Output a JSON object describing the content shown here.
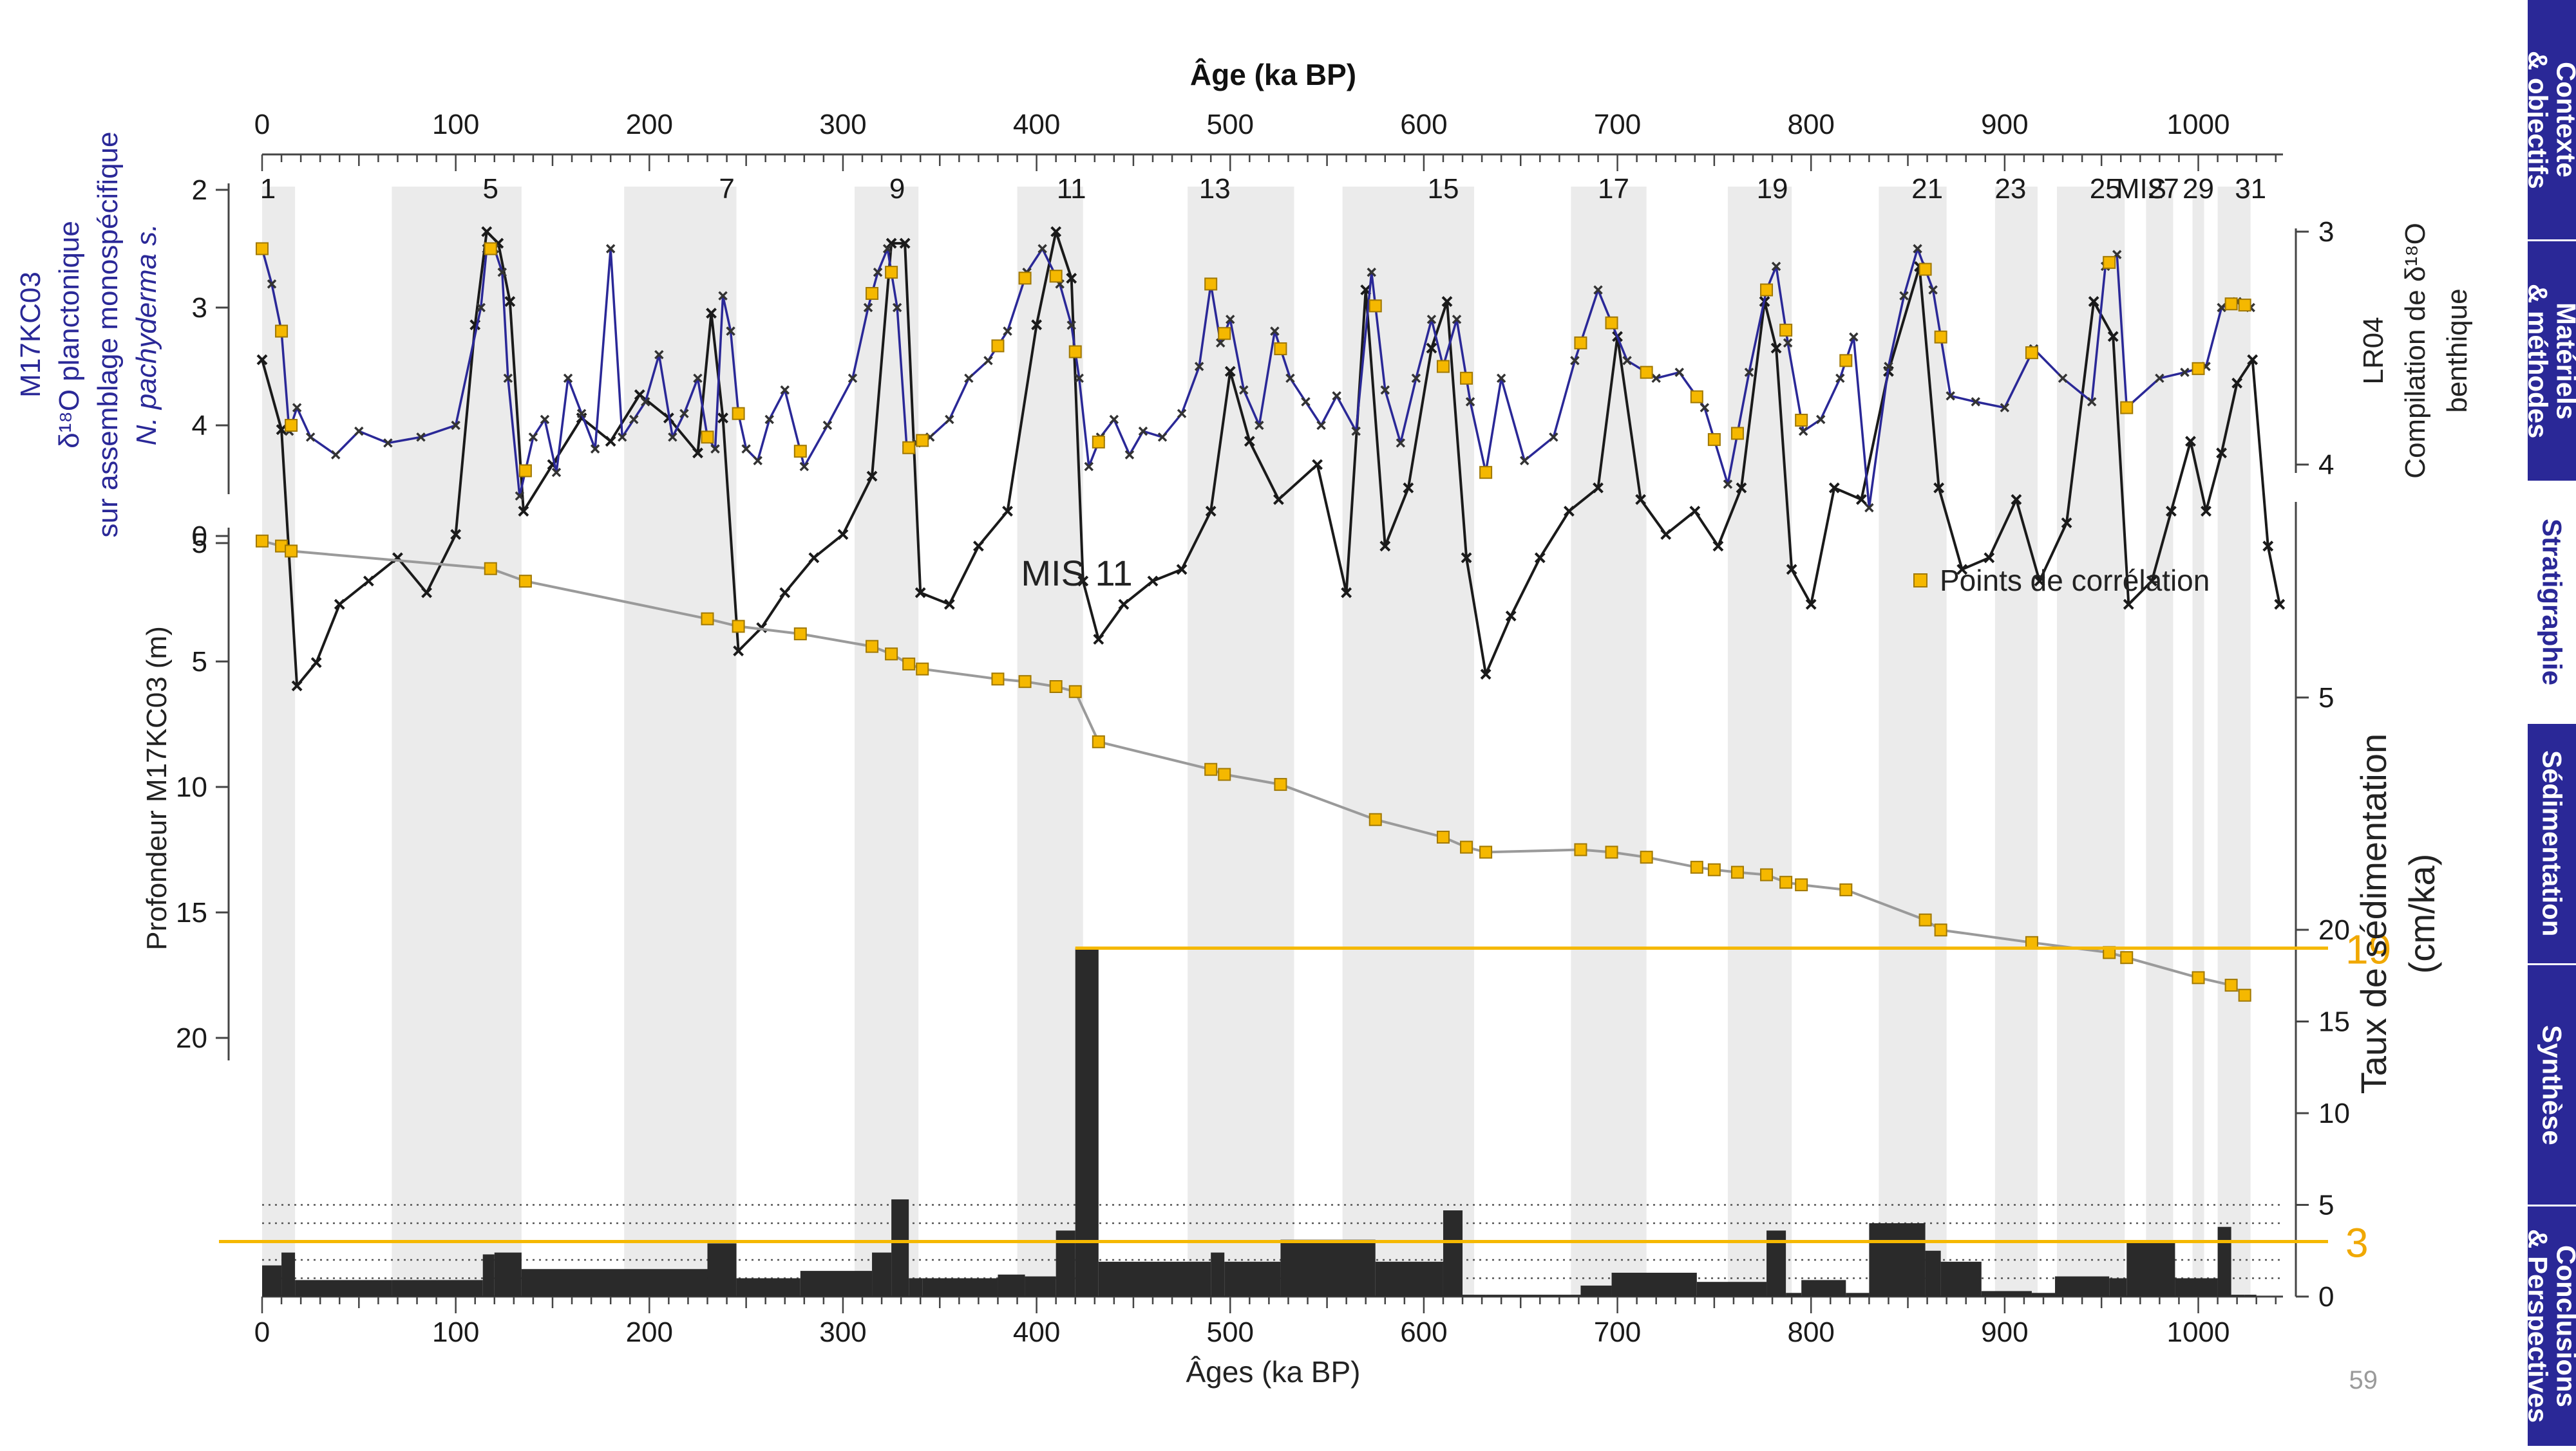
{
  "nav": {
    "tabs": [
      {
        "label": "Contexte\n& objectifs",
        "active": false
      },
      {
        "label": "Matériels\n& méthodes",
        "active": false
      },
      {
        "label": "Stratigraphie",
        "active": true
      },
      {
        "label": "Sédimentation",
        "active": false
      },
      {
        "label": "Synthèse",
        "active": false
      },
      {
        "label": "Conclusions\n& Perspectives",
        "active": false
      }
    ]
  },
  "page_number": "59",
  "colors": {
    "accent": "#f5b800",
    "nav": "#2a2897",
    "planktonic": "#2a2897",
    "benthic": "#1a1a1a",
    "band": "#ebebeb",
    "bars": "#2a2a2a"
  },
  "chart_data": {
    "type": "line",
    "top_axis_label": "Âge (ka BP)",
    "bottom_axis_label": "Âges (ka BP)",
    "x_ticks": [
      0,
      100,
      200,
      300,
      400,
      500,
      600,
      700,
      800,
      900,
      1000
    ],
    "xlim": [
      0,
      1050
    ],
    "mis_label": "MIS",
    "mis": [
      {
        "label": "1",
        "age": 3
      },
      {
        "label": "5",
        "age": 118
      },
      {
        "label": "7",
        "age": 240
      },
      {
        "label": "9",
        "age": 328
      },
      {
        "label": "11",
        "age": 418
      },
      {
        "label": "13",
        "age": 492
      },
      {
        "label": "15",
        "age": 610
      },
      {
        "label": "17",
        "age": 698
      },
      {
        "label": "19",
        "age": 780
      },
      {
        "label": "21",
        "age": 860
      },
      {
        "label": "23",
        "age": 903
      },
      {
        "label": "25",
        "age": 952
      },
      {
        "label": "27",
        "age": 982
      },
      {
        "label": "29",
        "age": 1000
      },
      {
        "label": "31",
        "age": 1027
      }
    ],
    "interglacial_bands": [
      [
        0,
        17
      ],
      [
        67,
        134
      ],
      [
        187,
        245
      ],
      [
        306,
        339
      ],
      [
        390,
        424
      ],
      [
        478,
        533
      ],
      [
        558,
        626
      ],
      [
        676,
        715
      ],
      [
        757,
        790
      ],
      [
        835,
        870
      ],
      [
        895,
        917
      ],
      [
        927,
        962
      ],
      [
        973,
        987
      ],
      [
        997,
        1003
      ],
      [
        1010,
        1027
      ]
    ],
    "panel_top": {
      "left_label": [
        "M17KC03",
        "δ¹⁸O planctonique",
        "sur assemblage monospécifique",
        "N. pachyderma s."
      ],
      "right_label": [
        "LR04",
        "Compilation de δ¹⁸O",
        "benthique"
      ],
      "left_ticks": [
        2,
        3,
        4,
        5
      ],
      "left_ylim": [
        2,
        5
      ],
      "right_ticks": [
        3,
        4,
        5
      ],
      "right_ylim": [
        3,
        5
      ],
      "series": [
        {
          "role": "planktonic",
          "x": [
            0,
            5,
            10,
            14,
            18,
            25,
            38,
            50,
            65,
            82,
            100,
            113,
            116,
            120,
            124,
            127,
            133,
            140,
            146,
            152,
            158,
            165,
            172,
            180,
            186,
            192,
            198,
            205,
            212,
            218,
            225,
            230,
            234,
            238,
            242,
            246,
            250,
            256,
            262,
            270,
            280,
            292,
            305,
            313,
            318,
            323,
            328,
            333,
            338,
            345,
            355,
            365,
            375,
            385,
            395,
            403,
            412,
            418,
            422,
            427,
            433,
            440,
            448,
            455,
            465,
            475,
            484,
            490,
            495,
            500,
            507,
            515,
            523,
            531,
            539,
            547,
            555,
            565,
            573,
            580,
            588,
            596,
            604,
            610,
            617,
            624,
            632,
            640,
            652,
            667,
            678,
            690,
            705,
            720,
            732,
            745,
            757,
            768,
            777,
            782,
            788,
            796,
            805,
            815,
            822,
            830,
            840,
            848,
            855,
            863,
            872,
            885,
            900,
            915,
            930,
            945,
            952,
            958,
            963,
            980,
            993,
            1004,
            1012,
            1020,
            1027
          ],
          "y": [
            2.5,
            2.8,
            3.2,
            4.05,
            3.85,
            4.1,
            4.25,
            4.05,
            4.15,
            4.1,
            4.0,
            3.0,
            2.5,
            2.5,
            2.7,
            3.6,
            4.6,
            4.1,
            3.95,
            4.4,
            3.6,
            3.9,
            4.2,
            2.5,
            4.1,
            3.95,
            3.8,
            3.4,
            4.1,
            3.9,
            3.6,
            4.1,
            4.2,
            2.9,
            3.2,
            3.9,
            4.2,
            4.3,
            3.95,
            3.7,
            4.35,
            4.0,
            3.6,
            3.0,
            2.7,
            2.5,
            3.0,
            4.2,
            4.15,
            4.1,
            3.95,
            3.6,
            3.45,
            3.2,
            2.7,
            2.5,
            2.8,
            3.15,
            3.6,
            4.35,
            4.1,
            3.95,
            4.25,
            4.05,
            4.1,
            3.9,
            3.5,
            2.8,
            3.3,
            3.1,
            3.7,
            4.0,
            3.2,
            3.6,
            3.8,
            4.0,
            3.75,
            4.05,
            2.7,
            3.7,
            4.15,
            3.6,
            3.1,
            3.5,
            3.1,
            3.8,
            4.4,
            3.6,
            4.3,
            4.1,
            3.45,
            2.85,
            3.45,
            3.6,
            3.55,
            3.85,
            4.5,
            3.55,
            2.85,
            2.65,
            3.3,
            4.05,
            3.95,
            3.6,
            3.25,
            4.7,
            3.5,
            2.9,
            2.5,
            2.85,
            3.75,
            3.8,
            3.85,
            3.35,
            3.6,
            3.8,
            2.65,
            2.55,
            3.85,
            3.6,
            3.55,
            3.5,
            3.0,
            2.95,
            3.0
          ]
        },
        {
          "role": "benthic",
          "x": [
            0,
            10,
            18,
            28,
            40,
            55,
            70,
            85,
            100,
            110,
            116,
            122,
            128,
            135,
            150,
            165,
            180,
            195,
            210,
            225,
            232,
            238,
            246,
            258,
            270,
            285,
            300,
            315,
            325,
            332,
            340,
            355,
            370,
            385,
            400,
            410,
            418,
            424,
            432,
            445,
            460,
            475,
            490,
            500,
            510,
            525,
            545,
            560,
            570,
            580,
            592,
            604,
            612,
            622,
            632,
            645,
            660,
            675,
            690,
            700,
            712,
            725,
            740,
            752,
            764,
            776,
            782,
            790,
            800,
            812,
            826,
            840,
            856,
            866,
            878,
            892,
            906,
            918,
            932,
            946,
            956,
            964,
            976,
            986,
            996,
            1004,
            1012,
            1020,
            1028,
            1036,
            1042
          ],
          "y": [
            3.55,
            3.85,
            4.95,
            4.85,
            4.6,
            4.5,
            4.4,
            4.55,
            4.3,
            3.4,
            3.0,
            3.05,
            3.3,
            4.2,
            4.0,
            3.8,
            3.9,
            3.7,
            3.8,
            3.95,
            3.35,
            3.8,
            4.8,
            4.7,
            4.55,
            4.4,
            4.3,
            4.05,
            3.05,
            3.05,
            4.55,
            4.6,
            4.35,
            4.2,
            3.4,
            3.0,
            3.2,
            4.5,
            4.75,
            4.6,
            4.5,
            4.45,
            4.2,
            3.6,
            3.9,
            4.15,
            4.0,
            4.55,
            3.25,
            4.35,
            4.1,
            3.5,
            3.3,
            4.4,
            4.9,
            4.65,
            4.4,
            4.2,
            4.1,
            3.45,
            4.15,
            4.3,
            4.2,
            4.35,
            4.1,
            3.3,
            3.5,
            4.45,
            4.6,
            4.1,
            4.15,
            3.6,
            3.15,
            4.1,
            4.45,
            4.4,
            4.15,
            4.5,
            4.25,
            3.3,
            3.45,
            4.6,
            4.5,
            4.2,
            3.9,
            4.2,
            3.95,
            3.65,
            3.55,
            4.35,
            4.6
          ]
        }
      ]
    },
    "panel_middle": {
      "ylabel": "Profondeur M17KC03 (m)",
      "yticks": [
        0,
        5,
        10,
        15,
        20
      ],
      "ylim": [
        0,
        20
      ],
      "legend": "Points de corrélation",
      "annotation": "MIS 11",
      "correlation_points": {
        "x": [
          0,
          10,
          15,
          118,
          136,
          230,
          246,
          278,
          315,
          325,
          334,
          341,
          380,
          394,
          410,
          420,
          432,
          490,
          497,
          526,
          575,
          610,
          622,
          632,
          681,
          697,
          715,
          741,
          750,
          762,
          777,
          787,
          795,
          818,
          859,
          867,
          914,
          954,
          963,
          1000,
          1017,
          1024
        ],
        "y": [
          0.2,
          0.4,
          0.6,
          1.3,
          1.8,
          3.3,
          3.6,
          3.9,
          4.4,
          4.7,
          5.1,
          5.3,
          5.7,
          5.8,
          6.0,
          6.2,
          8.2,
          9.3,
          9.5,
          9.9,
          11.3,
          12.0,
          12.4,
          12.6,
          12.5,
          12.6,
          12.8,
          13.2,
          13.3,
          13.4,
          13.5,
          13.8,
          13.9,
          14.1,
          15.3,
          15.7,
          16.2,
          16.6,
          16.8,
          17.6,
          17.9,
          18.3
        ]
      }
    },
    "panel_bottom": {
      "ylabel": "Taux de sédimentation (cm/ka)",
      "yticks": [
        0,
        5,
        10,
        15,
        20
      ],
      "ylim": [
        0,
        20
      ],
      "reference_lines": [
        {
          "value": 19,
          "label": "19"
        },
        {
          "value": 3,
          "label": "3"
        }
      ],
      "dotted_lines": [
        1,
        2,
        4,
        5
      ],
      "bars": {
        "x_start": [
          0,
          10,
          17,
          67,
          114,
          120,
          134,
          230,
          245,
          278,
          315,
          325,
          334,
          341,
          380,
          394,
          410,
          420,
          432,
          490,
          497,
          526,
          575,
          610,
          620,
          632,
          681,
          697,
          741,
          777,
          787,
          795,
          818,
          830,
          859,
          867,
          888,
          914,
          926,
          954,
          963,
          988,
          1010,
          1017,
          1024
        ],
        "x_end": [
          10,
          17,
          67,
          114,
          120,
          134,
          230,
          245,
          278,
          315,
          325,
          334,
          341,
          380,
          394,
          410,
          420,
          432,
          490,
          497,
          526,
          575,
          610,
          620,
          632,
          681,
          697,
          741,
          777,
          787,
          795,
          818,
          830,
          859,
          867,
          888,
          914,
          926,
          954,
          963,
          988,
          1010,
          1017,
          1024,
          1030
        ],
        "values": [
          1.7,
          2.4,
          0.9,
          0.9,
          2.3,
          2.4,
          1.5,
          2.9,
          1.0,
          1.4,
          2.4,
          5.3,
          1.0,
          1.0,
          1.2,
          1.1,
          3.6,
          19.0,
          1.9,
          2.4,
          1.9,
          3.1,
          1.9,
          4.7,
          0.1,
          0.1,
          0.6,
          1.3,
          0.8,
          3.6,
          0.2,
          0.9,
          0.2,
          4.0,
          2.5,
          1.9,
          0.3,
          0.2,
          1.1,
          1.0,
          3.0,
          1.0,
          3.8,
          0.1,
          0.1
        ]
      }
    }
  }
}
